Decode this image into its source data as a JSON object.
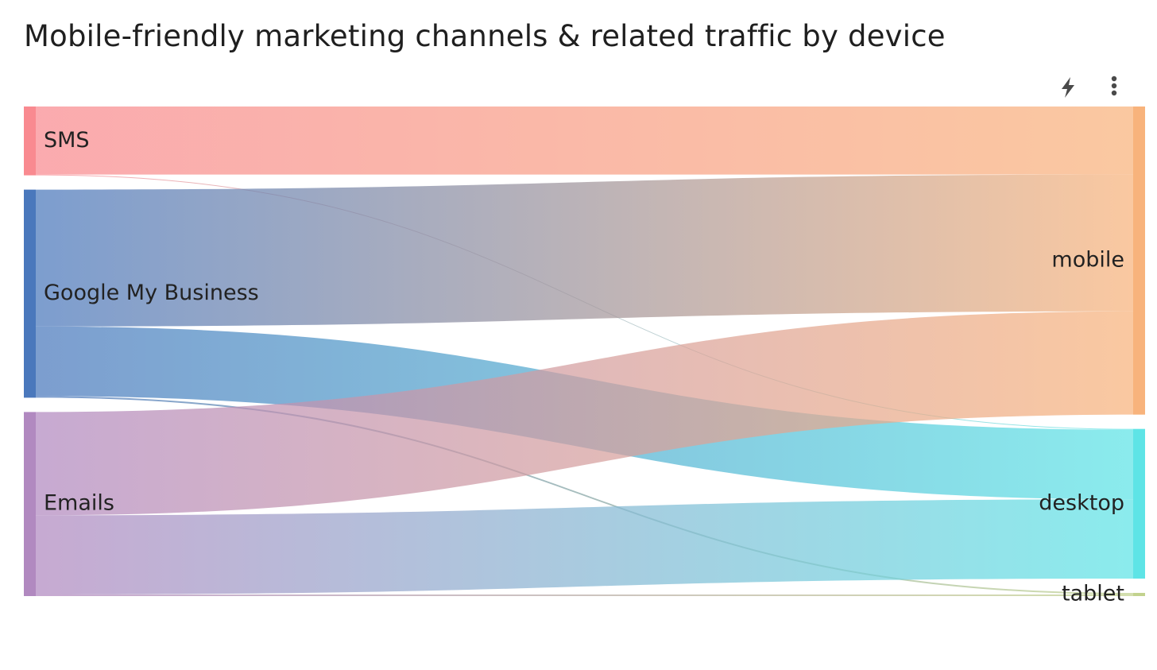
{
  "title": "Mobile-friendly marketing channels & related traffic by device",
  "toolbar": {
    "icons": [
      "lightning-icon",
      "more-vertical-icon"
    ]
  },
  "colors": {
    "SMS": "#f98a90",
    "Google My Business": "#4a78bc",
    "Emails": "#b189c0",
    "mobile": "#f8b37c",
    "desktop": "#5ee4e6",
    "tablet": "#c2d28e"
  },
  "chart_data": {
    "type": "sankey",
    "title": "Mobile-friendly marketing channels & related traffic by device",
    "sources": [
      "SMS",
      "Google My Business",
      "Emails"
    ],
    "targets": [
      "mobile",
      "desktop",
      "tablet"
    ],
    "links": [
      {
        "source": "SMS",
        "target": "mobile",
        "value": 85
      },
      {
        "source": "SMS",
        "target": "desktop",
        "value": 1
      },
      {
        "source": "Google My Business",
        "target": "mobile",
        "value": 171
      },
      {
        "source": "Google My Business",
        "target": "desktop",
        "value": 87
      },
      {
        "source": "Google My Business",
        "target": "tablet",
        "value": 2
      },
      {
        "source": "Emails",
        "target": "mobile",
        "value": 129
      },
      {
        "source": "Emails",
        "target": "desktop",
        "value": 99
      },
      {
        "source": "Emails",
        "target": "tablet",
        "value": 2
      }
    ]
  }
}
